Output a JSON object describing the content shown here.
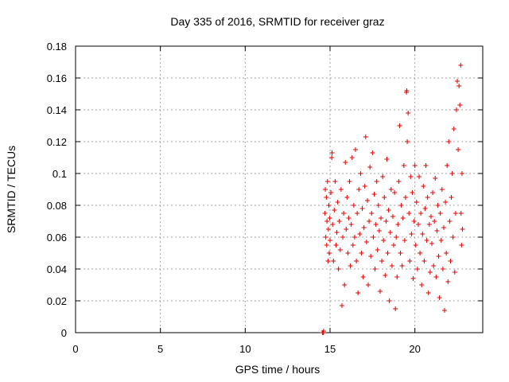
{
  "chart_data": {
    "type": "scatter",
    "title": "Day 335 of 2016, SRMTID for receiver graz",
    "xlabel": "GPS time / hours",
    "ylabel": "SRMTID / TECUs",
    "xlim": [
      0,
      24
    ],
    "ylim": [
      0,
      0.18
    ],
    "xticks": [
      0,
      5,
      10,
      15,
      20
    ],
    "xtick_labels": [
      "0",
      "5",
      "10",
      "15",
      "20"
    ],
    "yticks": [
      0,
      0.02,
      0.04,
      0.06,
      0.08,
      0.1,
      0.12,
      0.14,
      0.16,
      0.18
    ],
    "ytick_labels": [
      "0",
      "0.02",
      "0.04",
      "0.06",
      "0.08",
      "0.1",
      "0.12",
      "0.14",
      "0.16",
      "0.18"
    ],
    "grid": true,
    "marker": "plus",
    "color": "#e00000",
    "series": [
      {
        "name": "SRMTID",
        "points": [
          [
            14.55,
            0.0
          ],
          [
            14.6,
            0.0
          ],
          [
            14.62,
            0.001
          ],
          [
            14.7,
            0.075
          ],
          [
            14.72,
            0.09
          ],
          [
            14.75,
            0.06
          ],
          [
            14.78,
            0.085
          ],
          [
            14.8,
            0.055
          ],
          [
            14.82,
            0.07
          ],
          [
            14.85,
            0.095
          ],
          [
            14.88,
            0.045
          ],
          [
            14.9,
            0.065
          ],
          [
            14.93,
            0.08
          ],
          [
            14.95,
            0.05
          ],
          [
            14.98,
            0.072
          ],
          [
            15.0,
            0.058
          ],
          [
            15.05,
            0.088
          ],
          [
            15.1,
            0.11
          ],
          [
            15.12,
            0.113
          ],
          [
            15.15,
            0.068
          ],
          [
            15.2,
            0.045
          ],
          [
            15.25,
            0.077
          ],
          [
            15.3,
            0.095
          ],
          [
            15.35,
            0.055
          ],
          [
            15.4,
            0.063
          ],
          [
            15.45,
            0.082
          ],
          [
            15.5,
            0.04
          ],
          [
            15.55,
            0.07
          ],
          [
            15.6,
            0.052
          ],
          [
            15.65,
            0.09
          ],
          [
            15.7,
            0.017
          ],
          [
            15.75,
            0.06
          ],
          [
            15.8,
            0.075
          ],
          [
            15.85,
            0.03
          ],
          [
            15.9,
            0.107
          ],
          [
            15.95,
            0.065
          ],
          [
            16.0,
            0.085
          ],
          [
            16.05,
            0.05
          ],
          [
            16.1,
            0.072
          ],
          [
            16.15,
            0.095
          ],
          [
            16.2,
            0.042
          ],
          [
            16.25,
            0.068
          ],
          [
            16.3,
            0.11
          ],
          [
            16.35,
            0.055
          ],
          [
            16.4,
            0.08
          ],
          [
            16.45,
            0.06
          ],
          [
            16.5,
            0.115
          ],
          [
            16.55,
            0.045
          ],
          [
            16.6,
            0.075
          ],
          [
            16.65,
            0.025
          ],
          [
            16.7,
            0.09
          ],
          [
            16.75,
            0.062
          ],
          [
            16.8,
            0.1
          ],
          [
            16.85,
            0.05
          ],
          [
            16.9,
            0.078
          ],
          [
            16.95,
            0.035
          ],
          [
            17.0,
            0.066
          ],
          [
            17.05,
            0.092
          ],
          [
            17.1,
            0.123
          ],
          [
            17.15,
            0.057
          ],
          [
            17.2,
            0.083
          ],
          [
            17.25,
            0.03
          ],
          [
            17.3,
            0.07
          ],
          [
            17.35,
            0.104
          ],
          [
            17.4,
            0.048
          ],
          [
            17.45,
            0.075
          ],
          [
            17.5,
            0.113
          ],
          [
            17.55,
            0.06
          ],
          [
            17.6,
            0.087
          ],
          [
            17.65,
            0.04
          ],
          [
            17.7,
            0.068
          ],
          [
            17.75,
            0.095
          ],
          [
            17.8,
            0.052
          ],
          [
            17.85,
            0.08
          ],
          [
            17.9,
            0.064
          ],
          [
            17.95,
            0.026
          ],
          [
            18.0,
            0.072
          ],
          [
            18.05,
            0.045
          ],
          [
            18.1,
            0.098
          ],
          [
            18.15,
            0.058
          ],
          [
            18.2,
            0.085
          ],
          [
            18.25,
            0.036
          ],
          [
            18.3,
            0.07
          ],
          [
            18.35,
            0.109
          ],
          [
            18.4,
            0.05
          ],
          [
            18.45,
            0.077
          ],
          [
            18.5,
            0.02
          ],
          [
            18.55,
            0.063
          ],
          [
            18.6,
            0.09
          ],
          [
            18.65,
            0.042
          ],
          [
            18.7,
            0.073
          ],
          [
            18.75,
            0.055
          ],
          [
            18.8,
            0.088
          ],
          [
            18.85,
            0.015
          ],
          [
            18.9,
            0.06
          ],
          [
            18.95,
            0.035
          ],
          [
            19.0,
            0.068
          ],
          [
            19.05,
            0.095
          ],
          [
            19.1,
            0.13
          ],
          [
            19.15,
            0.05
          ],
          [
            19.2,
            0.08
          ],
          [
            19.25,
            0.042
          ],
          [
            19.3,
            0.072
          ],
          [
            19.35,
            0.105
          ],
          [
            19.4,
            0.058
          ],
          [
            19.45,
            0.085
          ],
          [
            19.5,
            0.151
          ],
          [
            19.52,
            0.152
          ],
          [
            19.55,
            0.12
          ],
          [
            19.6,
            0.138
          ],
          [
            19.65,
            0.075
          ],
          [
            19.7,
            0.045
          ],
          [
            19.75,
            0.098
          ],
          [
            19.8,
            0.062
          ],
          [
            19.85,
            0.088
          ],
          [
            19.9,
            0.034
          ],
          [
            19.95,
            0.07
          ],
          [
            20.0,
            0.105
          ],
          [
            20.05,
            0.055
          ],
          [
            20.1,
            0.082
          ],
          [
            20.15,
            0.04
          ],
          [
            20.2,
            0.068
          ],
          [
            20.25,
            0.098
          ],
          [
            20.3,
            0.05
          ],
          [
            20.35,
            0.075
          ],
          [
            20.4,
            0.03
          ],
          [
            20.45,
            0.062
          ],
          [
            20.5,
            0.092
          ],
          [
            20.55,
            0.045
          ],
          [
            20.6,
            0.078
          ],
          [
            20.65,
            0.105
          ],
          [
            20.7,
            0.058
          ],
          [
            20.75,
            0.085
          ],
          [
            20.8,
            0.025
          ],
          [
            20.85,
            0.068
          ],
          [
            20.9,
            0.038
          ],
          [
            20.95,
            0.073
          ],
          [
            21.0,
            0.056
          ],
          [
            21.05,
            0.088
          ],
          [
            21.1,
            0.042
          ],
          [
            21.15,
            0.07
          ],
          [
            21.2,
            0.097
          ],
          [
            21.25,
            0.035
          ],
          [
            21.3,
            0.064
          ],
          [
            21.35,
            0.08
          ],
          [
            21.4,
            0.048
          ],
          [
            21.45,
            0.022
          ],
          [
            21.5,
            0.075
          ],
          [
            21.55,
            0.058
          ],
          [
            21.6,
            0.09
          ],
          [
            21.65,
            0.04
          ],
          [
            21.7,
            0.066
          ],
          [
            21.75,
            0.014
          ],
          [
            21.8,
            0.082
          ],
          [
            21.85,
            0.05
          ],
          [
            21.9,
            0.105
          ],
          [
            21.95,
            0.032
          ],
          [
            22.0,
            0.12
          ],
          [
            22.05,
            0.07
          ],
          [
            22.1,
            0.045
          ],
          [
            22.15,
            0.085
          ],
          [
            22.2,
            0.1
          ],
          [
            22.25,
            0.06
          ],
          [
            22.3,
            0.128
          ],
          [
            22.35,
            0.038
          ],
          [
            22.4,
            0.075
          ],
          [
            22.45,
            0.14
          ],
          [
            22.5,
            0.158
          ],
          [
            22.55,
            0.115
          ],
          [
            22.6,
            0.155
          ],
          [
            22.65,
            0.143
          ],
          [
            22.7,
            0.168
          ],
          [
            22.72,
            0.075
          ],
          [
            22.75,
            0.055
          ],
          [
            22.78,
            0.1
          ],
          [
            22.8,
            0.065
          ]
        ]
      }
    ]
  }
}
